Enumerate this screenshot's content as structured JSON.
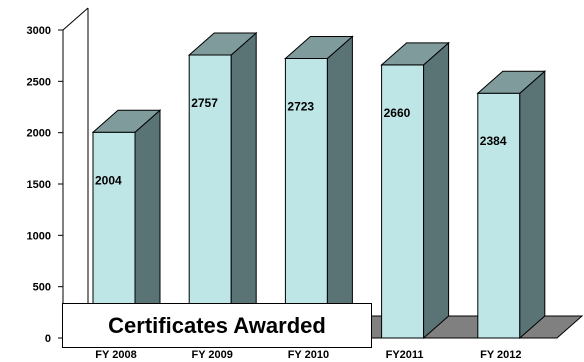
{
  "chart_data": {
    "type": "bar",
    "style": "3d-column",
    "title": "Certificates Awarded",
    "categories": [
      "FY 2008",
      "FY 2009",
      "FY 2010",
      "FY2011",
      "FY 2012"
    ],
    "values": [
      2004,
      2757,
      2723,
      2660,
      2384
    ],
    "data_labels": [
      "2004",
      "2757",
      "2723",
      "2660",
      "2384"
    ],
    "y_ticks": [
      "0",
      "500",
      "1000",
      "1500",
      "2000",
      "2500",
      "3000"
    ],
    "ylim": [
      0,
      3000
    ],
    "grid": false,
    "legend": "none",
    "colors": {
      "bar_front": "#bfe6e6",
      "bar_side": "#5a7375",
      "bar_top": "#7f9b9b",
      "floor": "#808080",
      "outline": "#000000"
    }
  }
}
